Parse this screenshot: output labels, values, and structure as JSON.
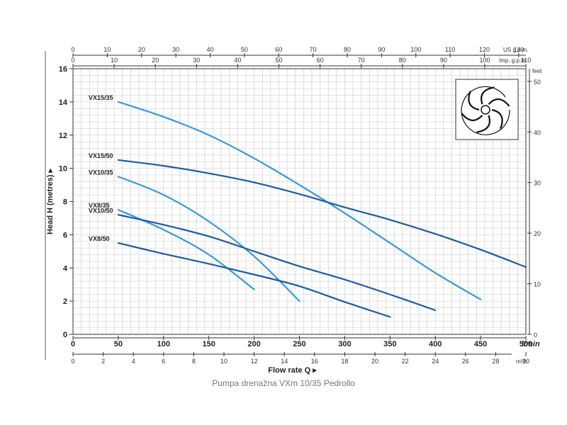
{
  "caption": "Pumpa drenažna VXm 10/35 Pedrollo",
  "chart_data": {
    "type": "line",
    "ylabel": "Head H (metres)",
    "xlabel": "Flow rate Q",
    "x_unit": "l/min",
    "xlim": [
      0,
      500
    ],
    "ylim": [
      0,
      16
    ],
    "x_ticks": [
      0,
      50,
      100,
      150,
      200,
      250,
      300,
      350,
      400,
      450,
      500
    ],
    "y_ticks": [
      0,
      2,
      4,
      6,
      8,
      10,
      12,
      14,
      16
    ],
    "grid": true,
    "secondary_axes": {
      "us_gpm": {
        "label": "US g.p.m.",
        "ticks": [
          0,
          10,
          20,
          30,
          40,
          50,
          60,
          70,
          80,
          90,
          100,
          110,
          120,
          130
        ]
      },
      "imp_gpm": {
        "label": "Imp. g.p.m.",
        "ticks": [
          0,
          10,
          20,
          30,
          40,
          50,
          60,
          70,
          80,
          90,
          100,
          110
        ]
      },
      "feet": {
        "label": "feet",
        "ticks": [
          0,
          10,
          20,
          30,
          40,
          50
        ]
      },
      "m3h": {
        "label": "m³/h",
        "ticks": [
          0,
          2,
          4,
          6,
          8,
          10,
          12,
          14,
          16,
          18,
          20,
          22,
          24,
          26,
          28,
          30
        ]
      }
    },
    "series": [
      {
        "name": "VX15/35",
        "color": "#3a9ad6",
        "x": [
          50,
          100,
          150,
          200,
          250,
          300,
          350,
          400,
          450
        ],
        "y": [
          14.0,
          13.1,
          12.0,
          10.6,
          9.0,
          7.3,
          5.5,
          3.7,
          2.1
        ]
      },
      {
        "name": "VX15/50",
        "color": "#1f5c9e",
        "x": [
          50,
          100,
          150,
          200,
          250,
          300,
          350,
          400,
          450,
          500
        ],
        "y": [
          10.5,
          10.15,
          9.7,
          9.15,
          8.45,
          7.65,
          6.9,
          6.05,
          5.1,
          4.05
        ]
      },
      {
        "name": "VX10/35",
        "color": "#3a9ad6",
        "x": [
          50,
          100,
          150,
          200,
          250
        ],
        "y": [
          9.5,
          8.4,
          6.8,
          4.7,
          2.0
        ]
      },
      {
        "name": "VX8/35",
        "color": "#3a9ad6",
        "x": [
          50,
          100,
          150,
          200
        ],
        "y": [
          7.5,
          6.3,
          4.8,
          2.7
        ]
      },
      {
        "name": "VX10/50",
        "color": "#1f5c9e",
        "x": [
          50,
          100,
          150,
          200,
          250,
          300,
          350,
          400
        ],
        "y": [
          7.2,
          6.6,
          5.9,
          5.0,
          4.1,
          3.3,
          2.4,
          1.45
        ]
      },
      {
        "name": "VX8/50",
        "color": "#1f5c9e",
        "x": [
          50,
          100,
          150,
          200,
          250,
          300,
          350
        ],
        "y": [
          5.5,
          4.85,
          4.25,
          3.6,
          2.9,
          1.95,
          1.05
        ]
      }
    ]
  }
}
